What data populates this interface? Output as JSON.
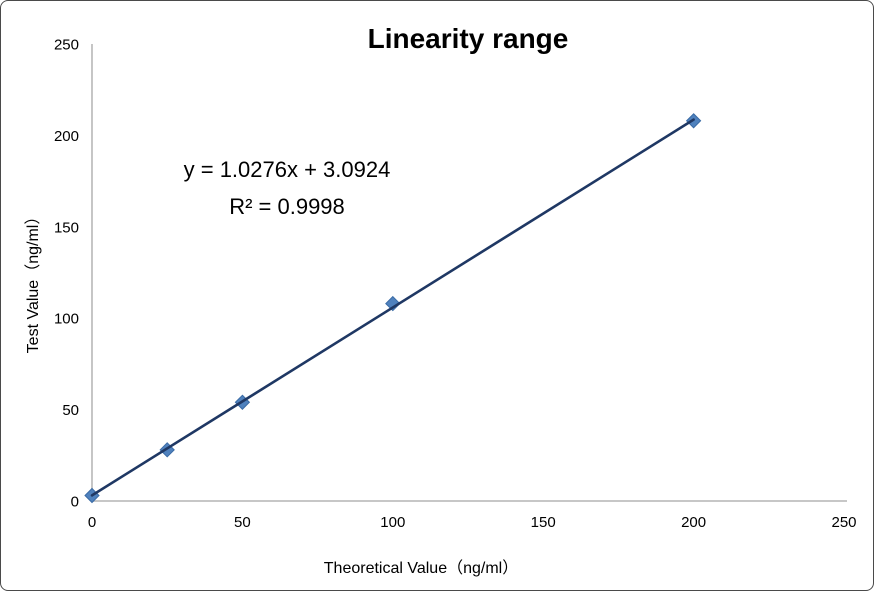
{
  "window": {
    "background": "#ffffff",
    "border_color": "#4a4a4a"
  },
  "chart_data": {
    "type": "scatter",
    "title": "Linearity range",
    "xlabel": "Theoretical Value（ng/ml）",
    "ylabel": "Test Value（ng/ml）",
    "xlim": [
      0,
      250
    ],
    "ylim": [
      0,
      250
    ],
    "x_ticks": [
      0,
      50,
      100,
      150,
      200,
      250
    ],
    "y_ticks": [
      0,
      50,
      100,
      150,
      200,
      250
    ],
    "grid": false,
    "legend": false,
    "axis_color": "#BFBFBF",
    "tick_label_color": "#000000",
    "series": [
      {
        "name": "Test Value",
        "marker": "diamond",
        "marker_color": "#4F81BD",
        "marker_edge_color": "#3A6BA5",
        "points": [
          {
            "x": 0,
            "y": 3
          },
          {
            "x": 25,
            "y": 28
          },
          {
            "x": 50,
            "y": 54
          },
          {
            "x": 100,
            "y": 108
          },
          {
            "x": 200,
            "y": 208
          }
        ]
      }
    ],
    "trendline": {
      "equation": "y = 1.0276x + 3.0924",
      "r_squared": "R² = 0.9998",
      "slope": 1.0276,
      "intercept": 3.0924,
      "x_start": 0,
      "x_end": 200,
      "color": "#1F3864",
      "width": 2.6
    }
  }
}
